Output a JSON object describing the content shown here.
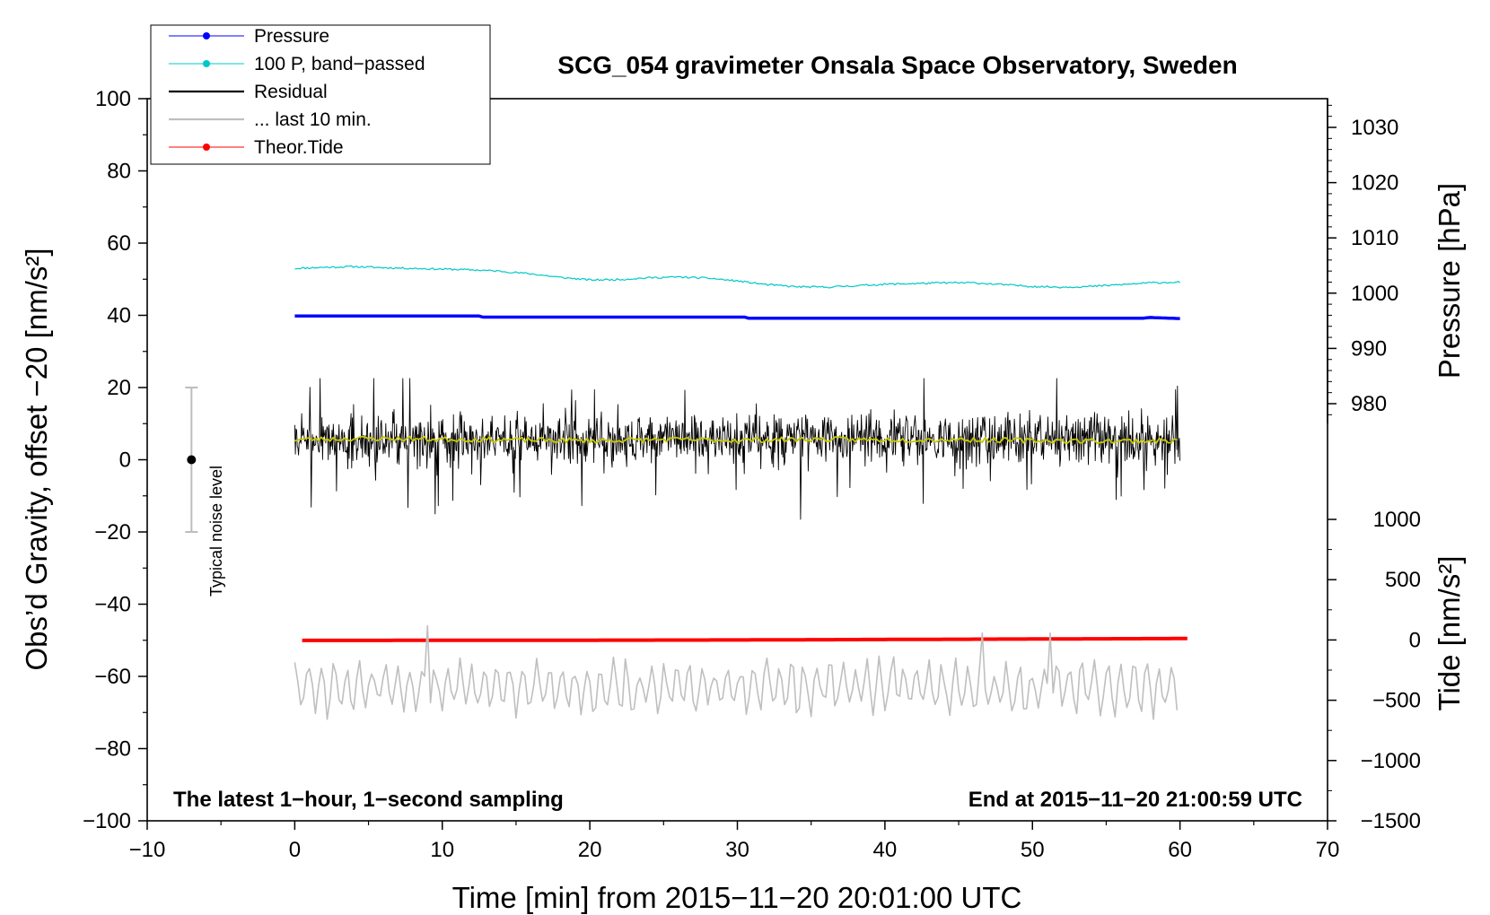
{
  "chart_data": {
    "type": "line",
    "title": "SCG_054 gravimeter Onsala Space Observatory, Sweden",
    "xlabel": "Time [min] from 2015−11−20 20:01:00 UTC",
    "ylabel_left": "Obs’d Gravity, offset −20 [nm/s²]",
    "ylabel_right_top": "Pressure [hPa]",
    "ylabel_right_bottom": "Tide [nm/s²]",
    "xlim": [
      -10,
      70
    ],
    "ylim_left": [
      -100,
      100
    ],
    "ylim_pressure": [
      975,
      1035
    ],
    "ylim_tide": [
      -1500,
      1000
    ],
    "x_ticks": [
      "−10",
      "0",
      "10",
      "20",
      "30",
      "40",
      "50",
      "60",
      "70"
    ],
    "y_ticks_left": [
      "−100",
      "−80",
      "−60",
      "−40",
      "−20",
      "0",
      "20",
      "40",
      "60",
      "80",
      "100"
    ],
    "y_ticks_pressure": [
      "980",
      "990",
      "1000",
      "1010",
      "1020",
      "1030"
    ],
    "y_ticks_tide": [
      "−1500",
      "−1000",
      "−500",
      "0",
      "500",
      "1000"
    ],
    "note_left": "The latest 1−hour, 1−second sampling",
    "note_right": "End at 2015−11−20 21:00:59 UTC",
    "noise_bar": {
      "label": "Typical noise level",
      "x": -7,
      "center": 0,
      "low": -20,
      "high": 20
    },
    "legend": {
      "position": "top-left",
      "entries": [
        {
          "label": "Pressure",
          "color": "#0000ff",
          "marker": true
        },
        {
          "label": "100 P, band−passed",
          "color": "#00c8c8",
          "marker": true
        },
        {
          "label": "Residual",
          "color": "#000000",
          "marker": false
        },
        {
          "label": "... last 10 min.",
          "color": "#bfbfbf",
          "marker": false
        },
        {
          "label": "Theor.Tide",
          "color": "#ff0000",
          "marker": true
        }
      ]
    },
    "series": [
      {
        "name": "Pressure",
        "axis": "left",
        "color": "#0000ff",
        "x": [
          0,
          12.5,
          12.6,
          30.5,
          30.6,
          57.5,
          58,
          60
        ],
        "y": [
          39.8,
          39.8,
          39.5,
          39.5,
          39.2,
          39.2,
          39.4,
          39.1
        ]
      },
      {
        "name": "100 P, band−passed",
        "axis": "left",
        "color": "#00c8c8",
        "x": [
          0,
          2,
          4,
          6,
          8,
          10,
          12,
          14,
          16,
          18,
          20,
          22,
          24,
          26,
          28,
          30,
          32,
          34,
          36,
          38,
          40,
          42,
          44,
          46,
          48,
          50,
          52,
          54,
          56,
          58,
          60
        ],
        "y": [
          53,
          53.3,
          53.5,
          53.2,
          53,
          52.8,
          52.6,
          52.2,
          51.5,
          50.5,
          49.8,
          49.9,
          50.4,
          50.6,
          50.3,
          49.5,
          48.5,
          47.9,
          47.8,
          48.2,
          48.6,
          48.8,
          49,
          49,
          48.5,
          48,
          47.8,
          48,
          48.5,
          49,
          49.2
        ]
      },
      {
        "name": "Residual",
        "axis": "left",
        "color": "#000000",
        "x_range": [
          0,
          60
        ],
        "mean": 5.5,
        "min": -16.5,
        "max": 22.5
      },
      {
        "name": "Residual (smoothed)",
        "axis": "left",
        "color": "#c8c800",
        "x": [
          0,
          5,
          10,
          15,
          20,
          25,
          30,
          35,
          40,
          45,
          50,
          55,
          60
        ],
        "y": [
          5.6,
          5.9,
          5.7,
          5.5,
          5.3,
          5.6,
          5.4,
          5.7,
          5.5,
          5.6,
          5.3,
          5.2,
          5.3
        ]
      },
      {
        "name": "... last 10 min.",
        "axis": "left",
        "color": "#bfbfbf",
        "x_range": [
          0,
          60
        ],
        "mean": -63,
        "min": -74,
        "max": -46
      },
      {
        "name": "Theor.Tide",
        "axis": "tide",
        "color": "#ff0000",
        "x": [
          0.5,
          10,
          20,
          30,
          40,
          50,
          60.5
        ],
        "y": [
          -4,
          -3,
          -2,
          0,
          4,
          8,
          12
        ]
      }
    ]
  }
}
